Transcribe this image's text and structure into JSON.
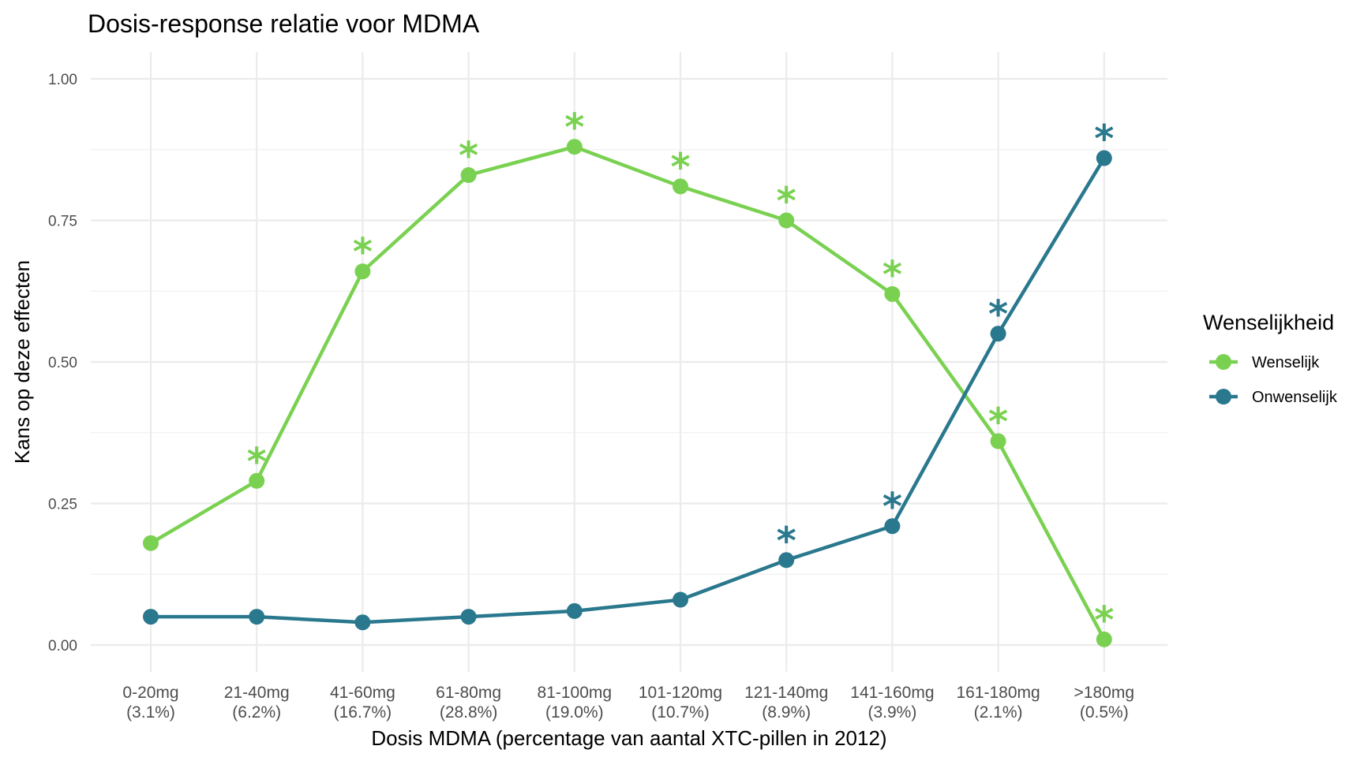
{
  "chart_data": {
    "type": "line",
    "title": "Dosis-response relatie voor MDMA",
    "xlabel": "Dosis MDMA (percentage van aantal XTC-pillen in 2012)",
    "ylabel": "Kans op deze effecten",
    "ylim": [
      0,
      1
    ],
    "yticks": [
      0,
      0.25,
      0.5,
      0.75,
      1.0
    ],
    "ytick_labels": [
      "0.00",
      "0.25",
      "0.50",
      "0.75",
      "1.00"
    ],
    "grid": true,
    "categories": [
      {
        "dose": "0-20mg",
        "share": "(3.1%)"
      },
      {
        "dose": "21-40mg",
        "share": "(6.2%)"
      },
      {
        "dose": "41-60mg",
        "share": "(16.7%)"
      },
      {
        "dose": "61-80mg",
        "share": "(28.8%)"
      },
      {
        "dose": "81-100mg",
        "share": "(19.0%)"
      },
      {
        "dose": "101-120mg",
        "share": "(10.7%)"
      },
      {
        "dose": "121-140mg",
        "share": "(8.9%)"
      },
      {
        "dose": "141-160mg",
        "share": "(3.9%)"
      },
      {
        "dose": "161-180mg",
        "share": "(2.1%)"
      },
      {
        "dose": ">180mg",
        "share": "(0.5%)"
      }
    ],
    "series": [
      {
        "name": "Wenselijk",
        "color": "#7AD151",
        "values": [
          0.18,
          0.29,
          0.66,
          0.83,
          0.88,
          0.81,
          0.75,
          0.62,
          0.36,
          0.01
        ],
        "significant": [
          false,
          true,
          true,
          true,
          true,
          true,
          true,
          true,
          true,
          true
        ]
      },
      {
        "name": "Onwenselijk",
        "color": "#2A788E",
        "values": [
          0.05,
          0.05,
          0.04,
          0.05,
          0.06,
          0.08,
          0.15,
          0.21,
          0.55,
          0.86
        ],
        "significant": [
          false,
          false,
          false,
          false,
          false,
          false,
          true,
          true,
          true,
          true
        ]
      }
    ],
    "significance_marker": "*",
    "legend": {
      "title": "Wenselijkheid",
      "position": "right",
      "items": [
        "Wenselijk",
        "Onwenselijk"
      ]
    }
  }
}
